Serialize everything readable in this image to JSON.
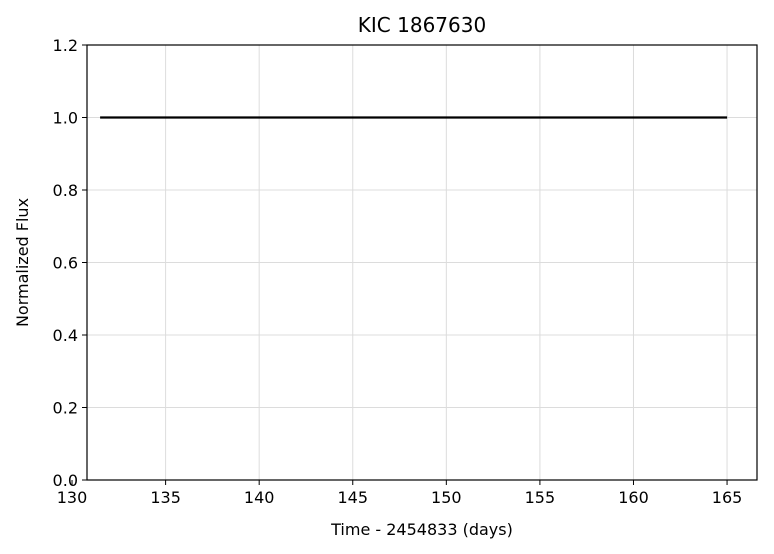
{
  "chart_data": {
    "type": "line",
    "title": "KIC 1867630",
    "xlabel": "Time - 2454833 (days)",
    "ylabel": "Normalized Flux",
    "xlim": [
      130.8,
      166.6
    ],
    "ylim": [
      0.0,
      1.2
    ],
    "xticks": [
      130,
      135,
      140,
      145,
      150,
      155,
      160,
      165
    ],
    "yticks": [
      0.0,
      0.2,
      0.4,
      0.6,
      0.8,
      1.0,
      1.2
    ],
    "xtick_labels": [
      "130",
      "135",
      "140",
      "145",
      "150",
      "155",
      "160",
      "165"
    ],
    "ytick_labels": [
      "0.0",
      "0.2",
      "0.4",
      "0.6",
      "0.8",
      "1.0",
      "1.2"
    ],
    "grid": true,
    "series": [
      {
        "color": "#000000",
        "x": [
          131.5,
          133.0,
          135.0,
          137.0,
          139.0,
          141.0,
          143.0,
          145.0,
          147.0,
          149.0,
          151.0,
          153.0,
          155.0,
          157.0,
          159.0,
          161.0,
          163.0,
          165.0
        ],
        "y": [
          1.0,
          1.0,
          1.0,
          1.0,
          1.0,
          1.0,
          1.0,
          1.0,
          1.0,
          1.0,
          1.0,
          1.0,
          1.0,
          1.0,
          1.0,
          1.0,
          1.0,
          1.0
        ]
      }
    ]
  }
}
